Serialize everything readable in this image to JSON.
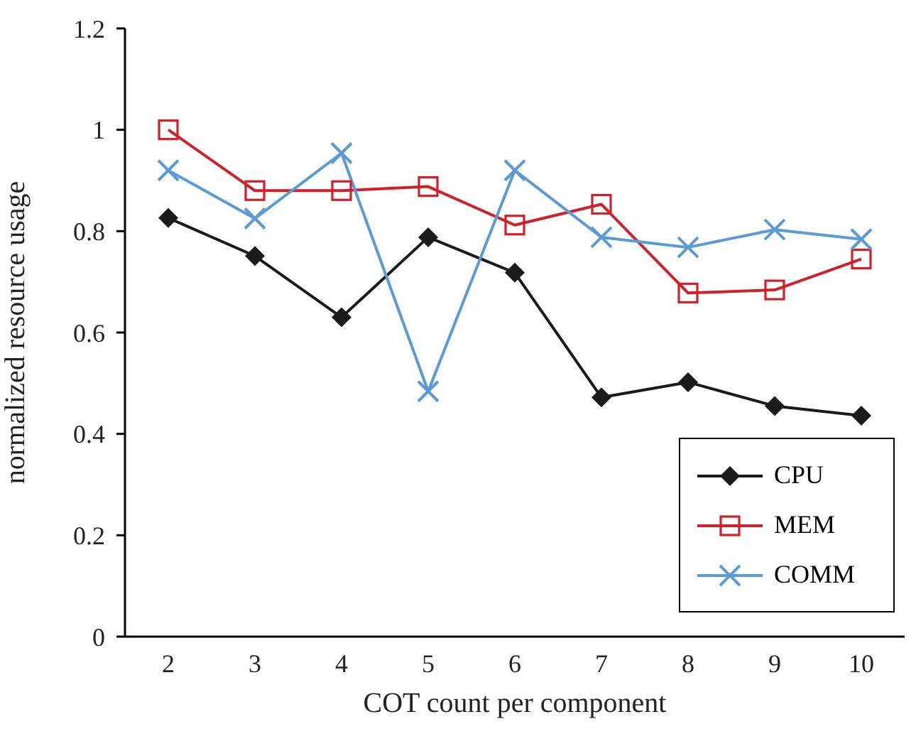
{
  "chart_data": {
    "type": "line",
    "xlabel": "COT count per component",
    "ylabel": "normalized resource usage",
    "categories": [
      "2",
      "3",
      "4",
      "5",
      "6",
      "7",
      "8",
      "9",
      "10"
    ],
    "series": [
      {
        "name": "CPU",
        "color": "#1a1a1a",
        "marker": "diamond",
        "values": [
          0.826,
          0.751,
          0.63,
          0.788,
          0.718,
          0.472,
          0.502,
          0.455,
          0.436
        ]
      },
      {
        "name": "MEM",
        "color": "#d0202a",
        "marker": "square",
        "values": [
          1.0,
          0.88,
          0.88,
          0.888,
          0.812,
          0.853,
          0.678,
          0.684,
          0.745
        ]
      },
      {
        "name": "COMM",
        "color": "#5b9bd5",
        "marker": "cross",
        "values": [
          0.92,
          0.825,
          0.954,
          0.484,
          0.92,
          0.788,
          0.768,
          0.803,
          0.784
        ]
      }
    ],
    "ylim": [
      0,
      1.2
    ],
    "yticks": [
      0,
      0.2,
      0.4,
      0.6,
      0.8,
      1,
      1.2
    ],
    "grid": false,
    "legend": "bottom right"
  }
}
